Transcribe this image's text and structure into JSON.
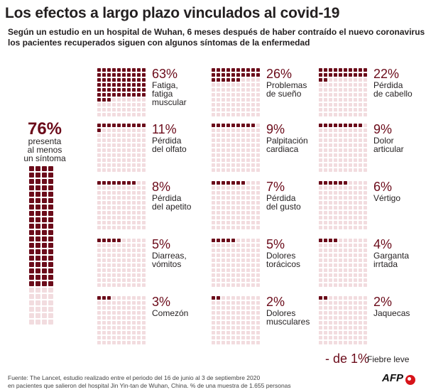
{
  "title": "Los efectos a largo plazo vinculados al covid-19",
  "subtitle_line1": "Según un estudio en un hospital de Wuhan, 6 meses después de haber contraído el nuevo coronavirus",
  "subtitle_line2": "los pacientes recuperados siguen con algunos síntomas de la enfermedad",
  "colors": {
    "filled": "#6b0b1a",
    "empty": "#f2dcdf",
    "text": "#231f20"
  },
  "chart_data": {
    "type": "waffle",
    "unit": "%",
    "summary": {
      "value": 76,
      "label": "76%",
      "lines": [
        "presenta",
        "al menos",
        "un síntoma"
      ]
    },
    "symptoms": [
      {
        "value": 63,
        "label": "63%",
        "lines": [
          "Fatiga,",
          "fatiga",
          "muscular"
        ]
      },
      {
        "value": 26,
        "label": "26%",
        "lines": [
          "Problemas",
          "de sueño"
        ]
      },
      {
        "value": 22,
        "label": "22%",
        "lines": [
          "Pérdida",
          "de cabello"
        ]
      },
      {
        "value": 11,
        "label": "11%",
        "lines": [
          "Pérdida",
          "del olfato"
        ]
      },
      {
        "value": 9,
        "label": "9%",
        "lines": [
          "Palpitación",
          "cardiaca"
        ]
      },
      {
        "value": 9,
        "label": "9%",
        "lines": [
          "Dolor",
          "articular"
        ]
      },
      {
        "value": 8,
        "label": "8%",
        "lines": [
          "Pérdida",
          "del apetito"
        ]
      },
      {
        "value": 7,
        "label": "7%",
        "lines": [
          "Pérdida",
          "del gusto"
        ]
      },
      {
        "value": 6,
        "label": "6%",
        "lines": [
          "Vértigo"
        ]
      },
      {
        "value": 5,
        "label": "5%",
        "lines": [
          "Diarreas,",
          "vómitos"
        ]
      },
      {
        "value": 5,
        "label": "5%",
        "lines": [
          "Dolores",
          "torácicos"
        ]
      },
      {
        "value": 4,
        "label": "4%",
        "lines": [
          "Garganta",
          "irrtada"
        ]
      },
      {
        "value": 3,
        "label": "3%",
        "lines": [
          "Comezón"
        ]
      },
      {
        "value": 2,
        "label": "2%",
        "lines": [
          "Dolores",
          "musculares"
        ]
      },
      {
        "value": 2,
        "label": "2%",
        "lines": [
          "Jaquecas"
        ]
      }
    ],
    "extra": {
      "label": "- de 1%",
      "text": "Fiebre leve"
    }
  },
  "footer_line1": "Fuente: The Lancet, estudio realizado entre el periodo del 16 de junio al 3 de septiembre 2020",
  "footer_line2": "en pacientes que salieron del hospital Jin Yin-tan de Wuhan, China. % de una muestra de 1.655 personas",
  "logo": "AFP"
}
